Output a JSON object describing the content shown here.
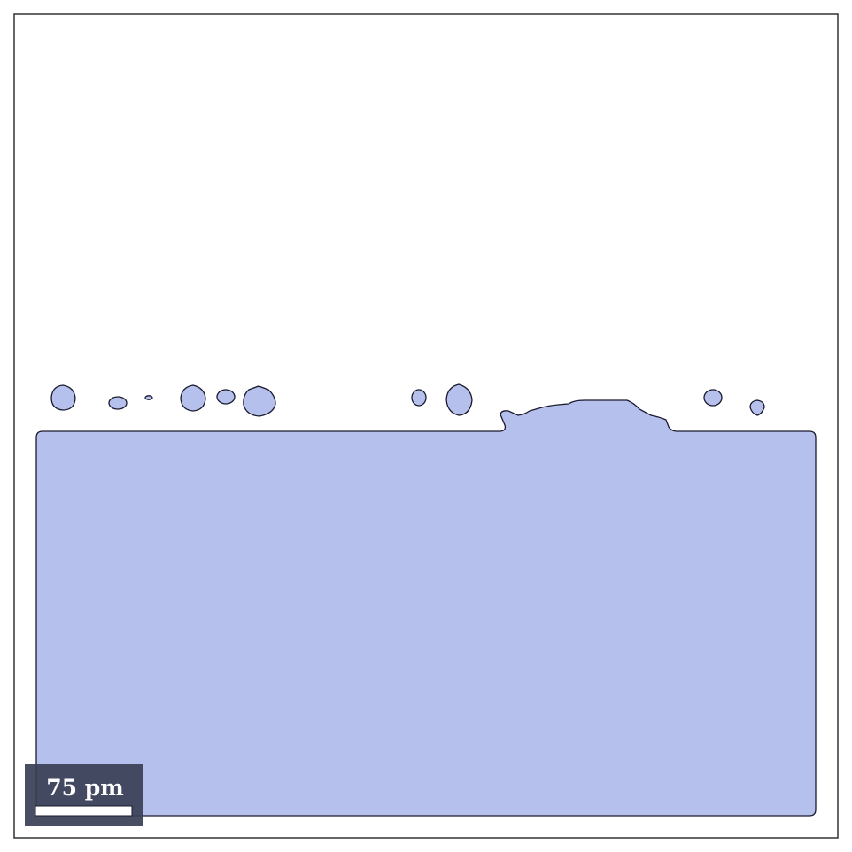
{
  "scale_bar": {
    "label": "75 pm"
  },
  "colors": {
    "fluid": "#b5c0ec",
    "outline": "#1a1a2e",
    "frame": "#333333",
    "scale_bg": "#3a3f55",
    "scale_bar": "#ffffff"
  }
}
